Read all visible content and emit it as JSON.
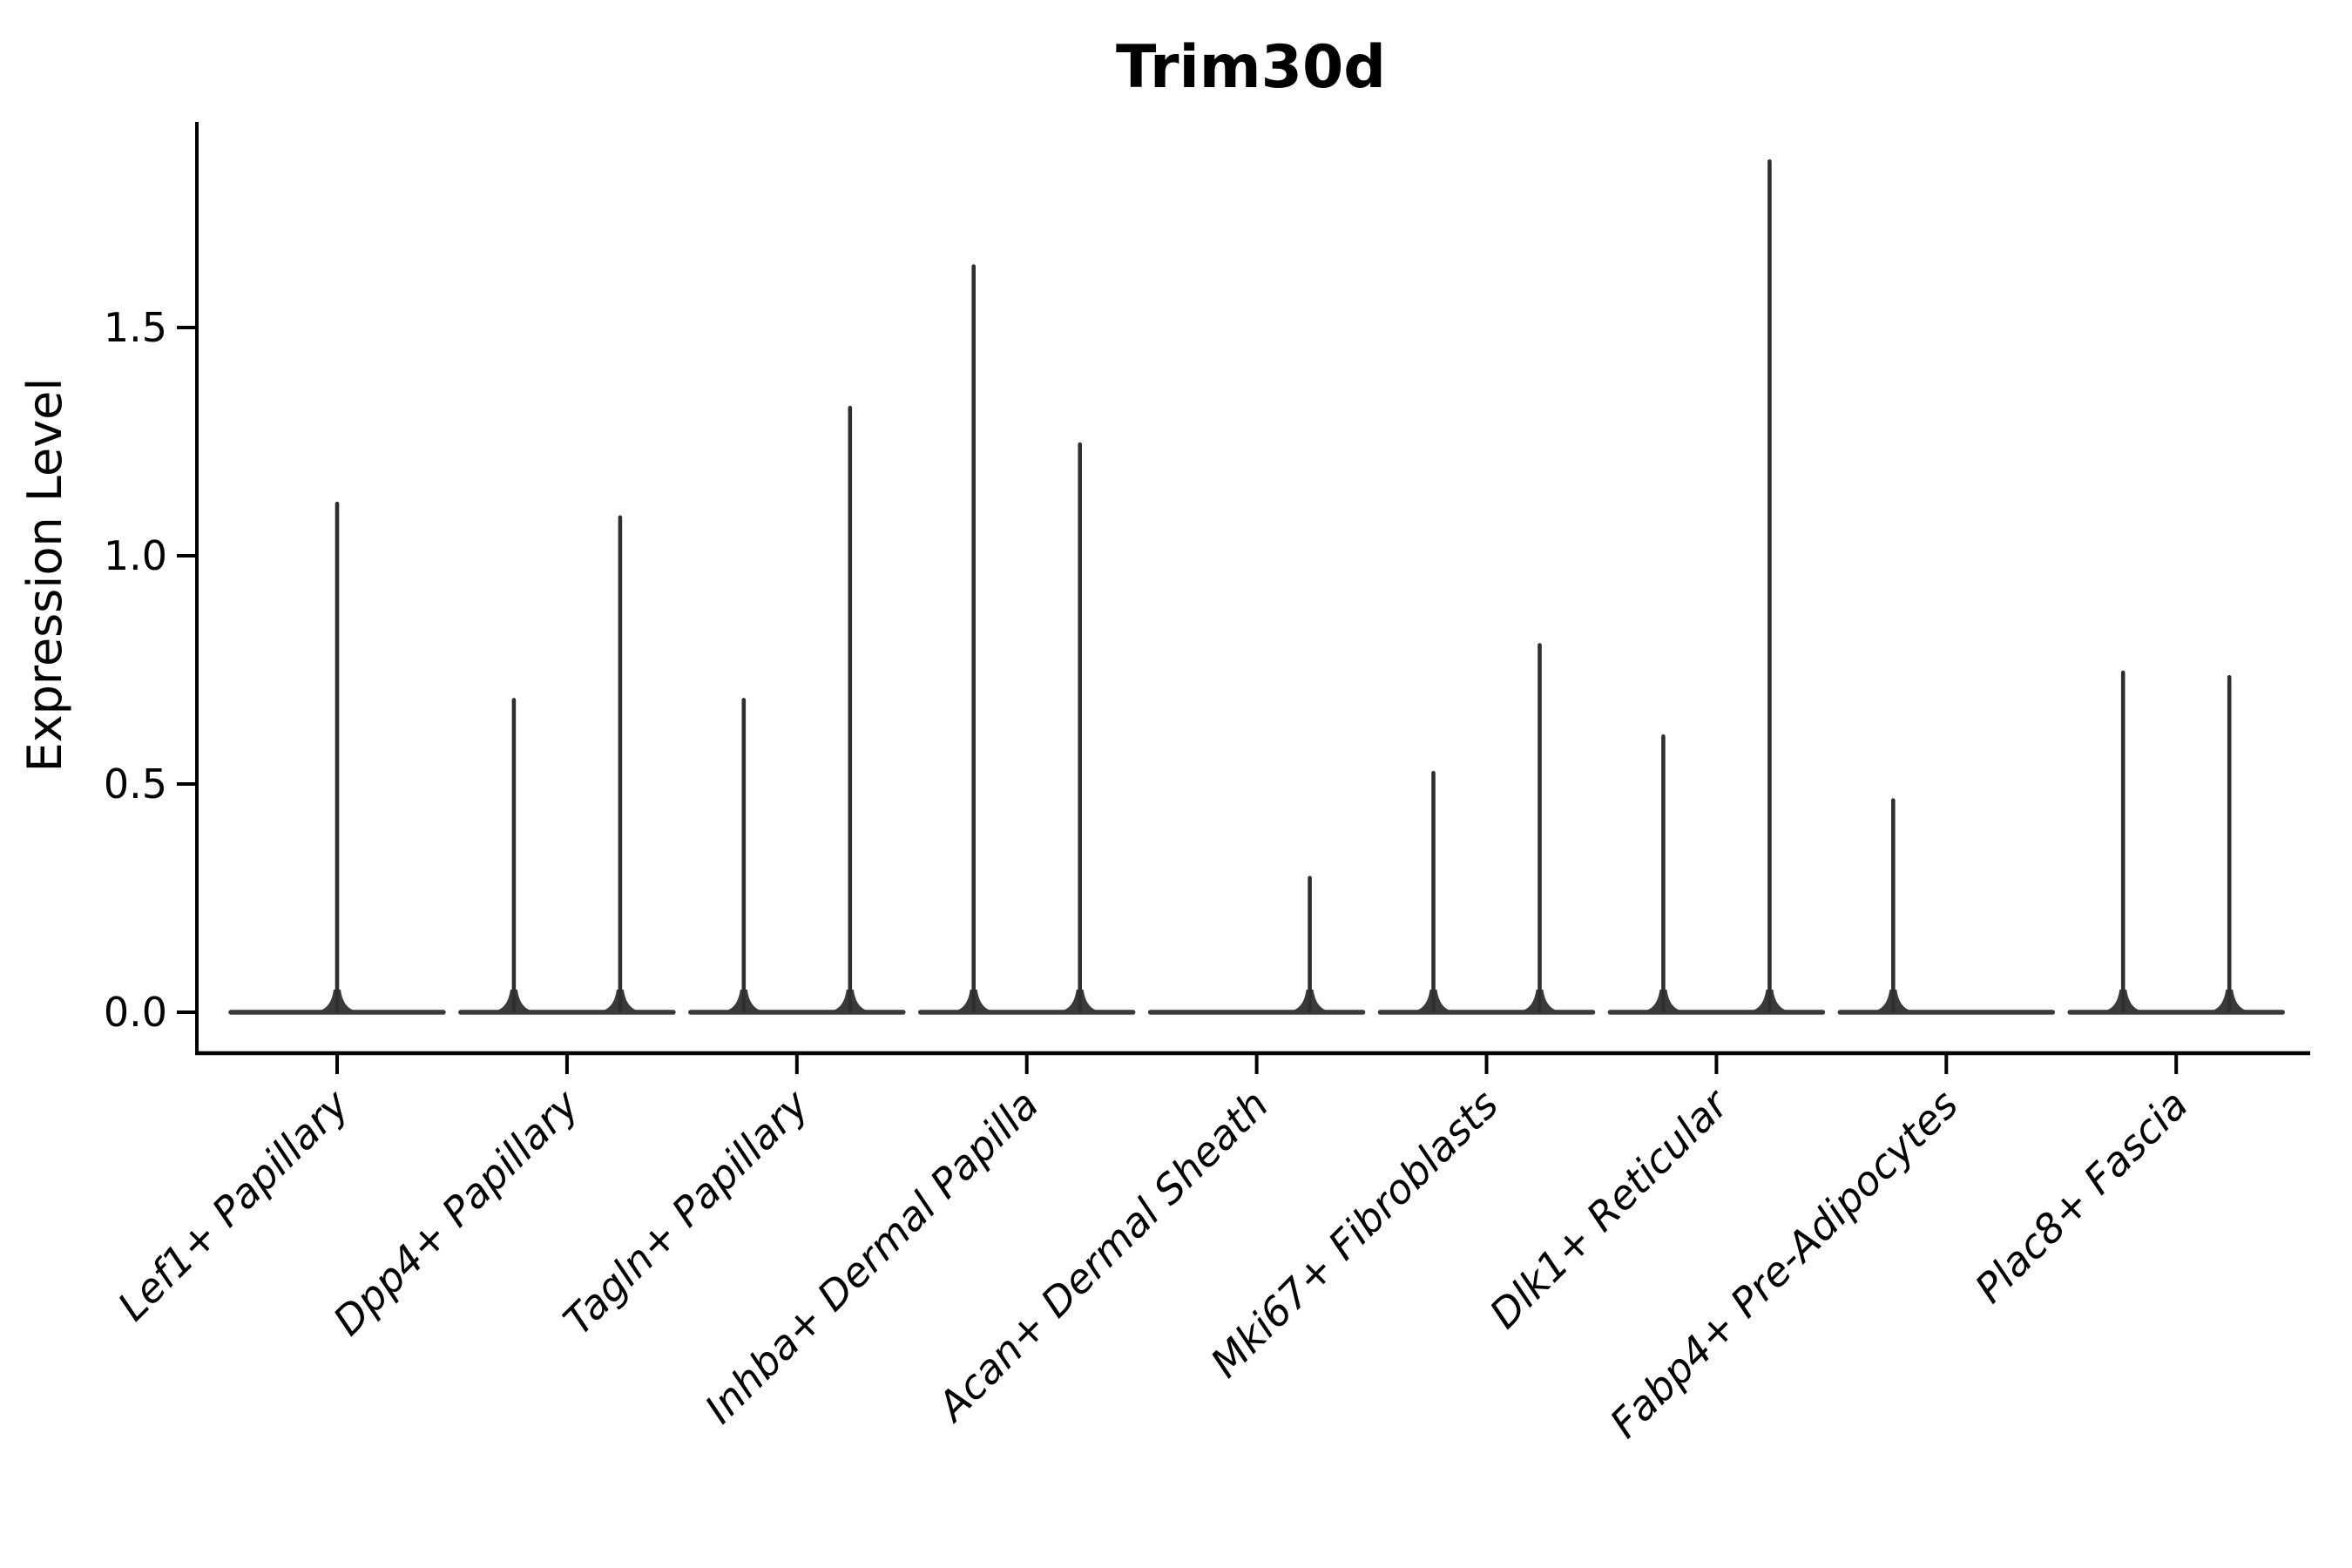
{
  "figure": {
    "title": "Trim30d",
    "background": "#ffffff"
  },
  "chart_data": {
    "type": "violin",
    "title": "Trim30d",
    "xlabel": "",
    "ylabel": "Expression Level",
    "legend": "none",
    "grid": false,
    "axis_color": "#000000",
    "violin_color": "#2f2f2f",
    "base_color": "#3a3a3a",
    "ylim": [
      -0.09,
      1.95
    ],
    "y_ticks": [
      {
        "value": 0.0,
        "label": "0.0"
      },
      {
        "value": 0.5,
        "label": "0.5"
      },
      {
        "value": 1.0,
        "label": "1.0"
      },
      {
        "value": 1.5,
        "label": "1.5"
      }
    ],
    "base_value": 0,
    "base_note": "every category shows a flattened violin (density collapsed at 0) spanning the full category width",
    "categories": [
      "Lef1+ Papillary",
      "Dpp4+ Papillary",
      "Tagln+ Papillary",
      "Inhba+ Dermal Papilla",
      "Acan+ Dermal Sheath",
      "Mki67+ Fibroblasts",
      "Dlk1+ Reticular",
      "Fabp4+ Pre-Adipocytes",
      "Plac8+ Fascia"
    ],
    "violins": [
      {
        "category": "Lef1+ Papillary",
        "spikes": [
          {
            "position": "center",
            "max_expression": 1.12
          }
        ]
      },
      {
        "category": "Dpp4+ Papillary",
        "spikes": [
          {
            "position": "left",
            "max_expression": 0.69
          },
          {
            "position": "right",
            "max_expression": 1.09
          }
        ]
      },
      {
        "category": "Tagln+ Papillary",
        "spikes": [
          {
            "position": "left",
            "max_expression": 0.69
          },
          {
            "position": "right",
            "max_expression": 1.33
          }
        ]
      },
      {
        "category": "Inhba+ Dermal Papilla",
        "spikes": [
          {
            "position": "left",
            "max_expression": 1.64
          },
          {
            "position": "right",
            "max_expression": 1.25
          }
        ]
      },
      {
        "category": "Acan+ Dermal Sheath",
        "spikes": [
          {
            "position": "right",
            "max_expression": 0.3
          }
        ]
      },
      {
        "category": "Mki67+ Fibroblasts",
        "spikes": [
          {
            "position": "left",
            "max_expression": 0.53
          },
          {
            "position": "right",
            "max_expression": 0.81
          }
        ]
      },
      {
        "category": "Dlk1+ Reticular",
        "spikes": [
          {
            "position": "left",
            "max_expression": 0.61
          },
          {
            "position": "right",
            "max_expression": 1.87
          }
        ]
      },
      {
        "category": "Fabp4+ Pre-Adipocytes",
        "spikes": [
          {
            "position": "left",
            "max_expression": 0.47
          }
        ]
      },
      {
        "category": "Plac8+ Fascia",
        "spikes": [
          {
            "position": "left",
            "max_expression": 0.75
          },
          {
            "position": "right",
            "max_expression": 0.74
          }
        ]
      }
    ]
  }
}
